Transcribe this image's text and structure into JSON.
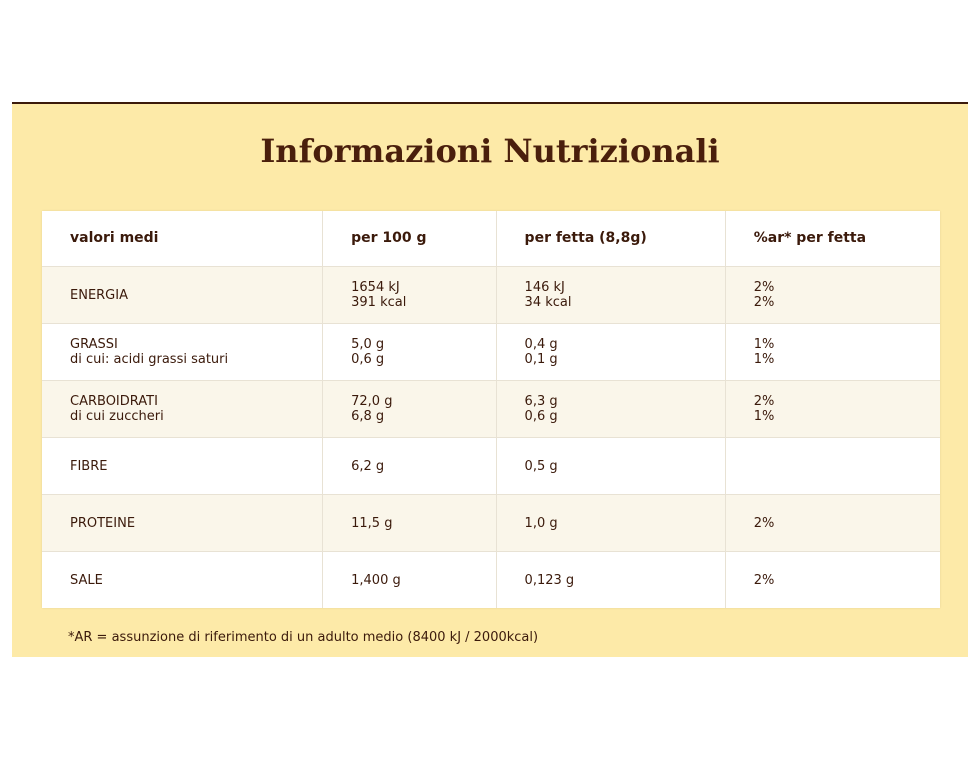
{
  "title": "Informazioni Nutrizionali",
  "table": {
    "header": [
      "valori medi",
      "per 100 g",
      "per fetta (8,8g)",
      "%ar* per fetta"
    ],
    "rows": [
      [
        [
          "ENERGIA"
        ],
        [
          "1654 kJ",
          "391 kcal"
        ],
        [
          "146 kJ",
          "34 kcal"
        ],
        [
          "2%",
          "2%"
        ]
      ],
      [
        [
          "GRASSI",
          "di cui: acidi grassi saturi"
        ],
        [
          "5,0 g",
          "0,6 g"
        ],
        [
          "0,4 g",
          "0,1 g"
        ],
        [
          "1%",
          "1%"
        ]
      ],
      [
        [
          "CARBOIDRATI",
          "di cui zuccheri"
        ],
        [
          "72,0 g",
          "6,8 g"
        ],
        [
          "6,3 g",
          "0,6 g"
        ],
        [
          "2%",
          "1%"
        ]
      ],
      [
        [
          "FIBRE"
        ],
        [
          "6,2 g"
        ],
        [
          "0,5 g"
        ],
        []
      ],
      [
        [
          "PROTEINE"
        ],
        [
          "11,5 g"
        ],
        [
          "1,0 g"
        ],
        [
          "2%"
        ]
      ],
      [
        [
          "SALE"
        ],
        [
          "1,400 g"
        ],
        [
          "0,123 g"
        ],
        [
          "2%"
        ]
      ]
    ]
  },
  "footnote": "*AR = assunzione di riferimento di un adulto medio (8400 kJ / 2000kcal)"
}
